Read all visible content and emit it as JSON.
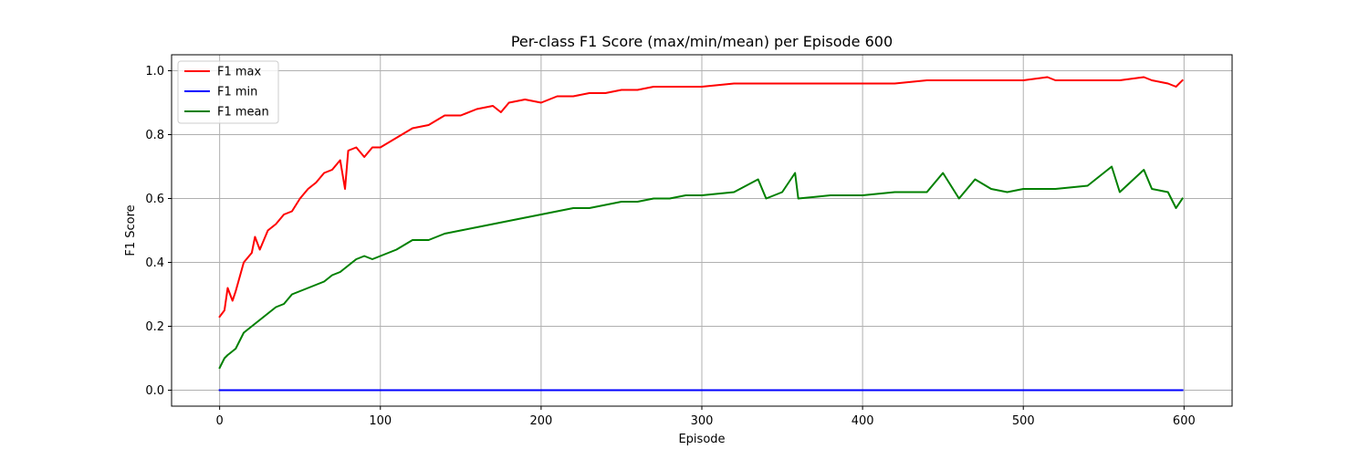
{
  "chart_data": {
    "type": "line",
    "title": "Per-class F1 Score (max/min/mean) per Episode 600",
    "xlabel": "Episode",
    "ylabel": "F1 Score",
    "xlim": [
      -29.9,
      629.9
    ],
    "ylim": [
      -0.05,
      1.05
    ],
    "xticks": [
      0,
      100,
      200,
      300,
      400,
      500,
      600
    ],
    "xtick_labels": [
      "0",
      "100",
      "200",
      "300",
      "400",
      "500",
      "600"
    ],
    "yticks": [
      0.0,
      0.2,
      0.4,
      0.6,
      0.8,
      1.0
    ],
    "ytick_labels": [
      "0.0",
      "0.2",
      "0.4",
      "0.6",
      "0.8",
      "1.0"
    ],
    "grid": true,
    "legend_location": "upper-left",
    "colors": {
      "F1 max": "#ff0000",
      "F1 min": "#0000ff",
      "F1 mean": "#008000"
    },
    "series": [
      {
        "name": "F1 max",
        "color": "#ff0000",
        "x": [
          0,
          3,
          5,
          8,
          10,
          15,
          20,
          22,
          25,
          30,
          35,
          40,
          45,
          50,
          55,
          60,
          65,
          70,
          75,
          78,
          80,
          85,
          90,
          95,
          100,
          110,
          120,
          130,
          140,
          150,
          160,
          170,
          175,
          180,
          190,
          200,
          210,
          220,
          230,
          240,
          250,
          260,
          270,
          280,
          290,
          300,
          320,
          340,
          360,
          380,
          400,
          420,
          440,
          460,
          480,
          500,
          515,
          520,
          540,
          560,
          575,
          580,
          590,
          595,
          599
        ],
        "y": [
          0.23,
          0.25,
          0.32,
          0.28,
          0.31,
          0.4,
          0.43,
          0.48,
          0.44,
          0.5,
          0.52,
          0.55,
          0.56,
          0.6,
          0.63,
          0.65,
          0.68,
          0.69,
          0.72,
          0.63,
          0.75,
          0.76,
          0.73,
          0.76,
          0.76,
          0.79,
          0.82,
          0.83,
          0.86,
          0.86,
          0.88,
          0.89,
          0.87,
          0.9,
          0.91,
          0.9,
          0.92,
          0.92,
          0.93,
          0.93,
          0.94,
          0.94,
          0.95,
          0.95,
          0.95,
          0.95,
          0.96,
          0.96,
          0.96,
          0.96,
          0.96,
          0.96,
          0.97,
          0.97,
          0.97,
          0.97,
          0.98,
          0.97,
          0.97,
          0.97,
          0.98,
          0.97,
          0.96,
          0.95,
          0.97
        ]
      },
      {
        "name": "F1 min",
        "color": "#0000ff",
        "x": [
          0,
          599
        ],
        "y": [
          0.0,
          0.0
        ]
      },
      {
        "name": "F1 mean",
        "color": "#008000",
        "x": [
          0,
          3,
          5,
          10,
          15,
          20,
          25,
          30,
          35,
          40,
          45,
          50,
          55,
          60,
          65,
          70,
          75,
          80,
          85,
          90,
          95,
          100,
          110,
          120,
          130,
          140,
          150,
          160,
          170,
          180,
          190,
          200,
          210,
          220,
          230,
          240,
          250,
          260,
          270,
          280,
          290,
          300,
          320,
          335,
          340,
          350,
          358,
          360,
          380,
          400,
          420,
          440,
          450,
          460,
          470,
          480,
          490,
          500,
          520,
          540,
          555,
          560,
          575,
          580,
          590,
          595,
          599
        ],
        "y": [
          0.07,
          0.1,
          0.11,
          0.13,
          0.18,
          0.2,
          0.22,
          0.24,
          0.26,
          0.27,
          0.3,
          0.31,
          0.32,
          0.33,
          0.34,
          0.36,
          0.37,
          0.39,
          0.41,
          0.42,
          0.41,
          0.42,
          0.44,
          0.47,
          0.47,
          0.49,
          0.5,
          0.51,
          0.52,
          0.53,
          0.54,
          0.55,
          0.56,
          0.57,
          0.57,
          0.58,
          0.59,
          0.59,
          0.6,
          0.6,
          0.61,
          0.61,
          0.62,
          0.66,
          0.6,
          0.62,
          0.68,
          0.6,
          0.61,
          0.61,
          0.62,
          0.62,
          0.68,
          0.6,
          0.66,
          0.63,
          0.62,
          0.63,
          0.63,
          0.64,
          0.7,
          0.62,
          0.69,
          0.63,
          0.62,
          0.57,
          0.6
        ]
      }
    ]
  }
}
